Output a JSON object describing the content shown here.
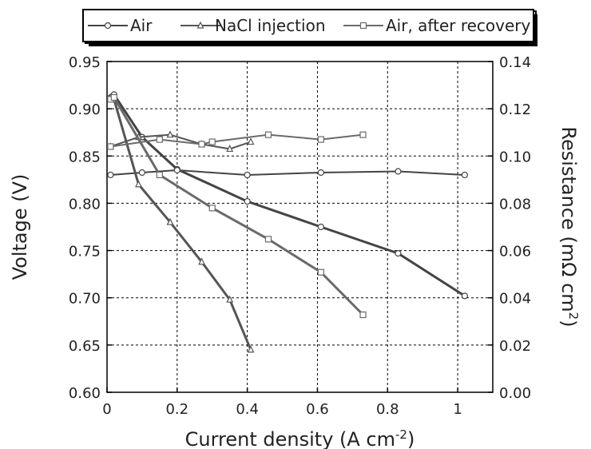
{
  "chart_data": {
    "type": "line",
    "xlabel": "Current density (A cm",
    "xlabel_sup": "-2",
    "xlabel_end": ")",
    "ylabel_left": "Voltage (V)",
    "ylabel_right": "Resistance (mΩ cm",
    "ylabel_right_sup": "2",
    "ylabel_right_end": ")",
    "xlim": [
      0,
      1.1
    ],
    "ylim_left": [
      0.6,
      0.95
    ],
    "ylim_right": [
      0.0,
      0.14
    ],
    "x_ticks": [
      "0",
      "0.2",
      "0.4",
      "0.6",
      "0.8",
      "1"
    ],
    "y_left_ticks": [
      "0.60",
      "0.65",
      "0.70",
      "0.75",
      "0.80",
      "0.85",
      "0.90",
      "0.95"
    ],
    "y_right_ticks": [
      "0.00",
      "0.02",
      "0.04",
      "0.06",
      "0.08",
      "0.10",
      "0.12",
      "0.14"
    ],
    "grid": true,
    "legend_position": "top",
    "legend": [
      "Air",
      "NaCl injection",
      "Air, after recovery"
    ],
    "series": [
      {
        "name": "Air",
        "marker": "circle",
        "color": "#444444",
        "voltage": {
          "x": [
            0.01,
            0.02,
            0.1,
            0.2,
            0.4,
            0.61,
            0.83,
            1.02
          ],
          "y": [
            0.912,
            0.915,
            0.87,
            0.836,
            0.802,
            0.775,
            0.747,
            0.702
          ]
        },
        "resistance": {
          "x": [
            0.01,
            0.1,
            0.2,
            0.4,
            0.61,
            0.83,
            1.02
          ],
          "y": [
            0.092,
            0.093,
            0.094,
            0.092,
            0.093,
            0.0935,
            0.092
          ]
        }
      },
      {
        "name": "NaCl injection",
        "marker": "triangle",
        "color": "#555555",
        "voltage": {
          "x": [
            0.01,
            0.02,
            0.09,
            0.18,
            0.27,
            0.35,
            0.41
          ],
          "y": [
            0.912,
            0.91,
            0.82,
            0.78,
            0.738,
            0.698,
            0.645
          ]
        },
        "resistance": {
          "x": [
            0.01,
            0.09,
            0.18,
            0.27,
            0.35,
            0.41
          ],
          "y": [
            0.104,
            0.108,
            0.109,
            0.105,
            0.103,
            0.106
          ]
        }
      },
      {
        "name": "Air, after recovery",
        "marker": "square",
        "color": "#6a6a6a",
        "voltage": {
          "x": [
            0.01,
            0.02,
            0.15,
            0.3,
            0.46,
            0.61,
            0.73
          ],
          "y": [
            0.91,
            0.912,
            0.83,
            0.795,
            0.762,
            0.727,
            0.682
          ]
        },
        "resistance": {
          "x": [
            0.01,
            0.15,
            0.27,
            0.3,
            0.46,
            0.61,
            0.73
          ],
          "y": [
            0.104,
            0.107,
            0.105,
            0.106,
            0.109,
            0.107,
            0.109
          ]
        }
      }
    ]
  }
}
